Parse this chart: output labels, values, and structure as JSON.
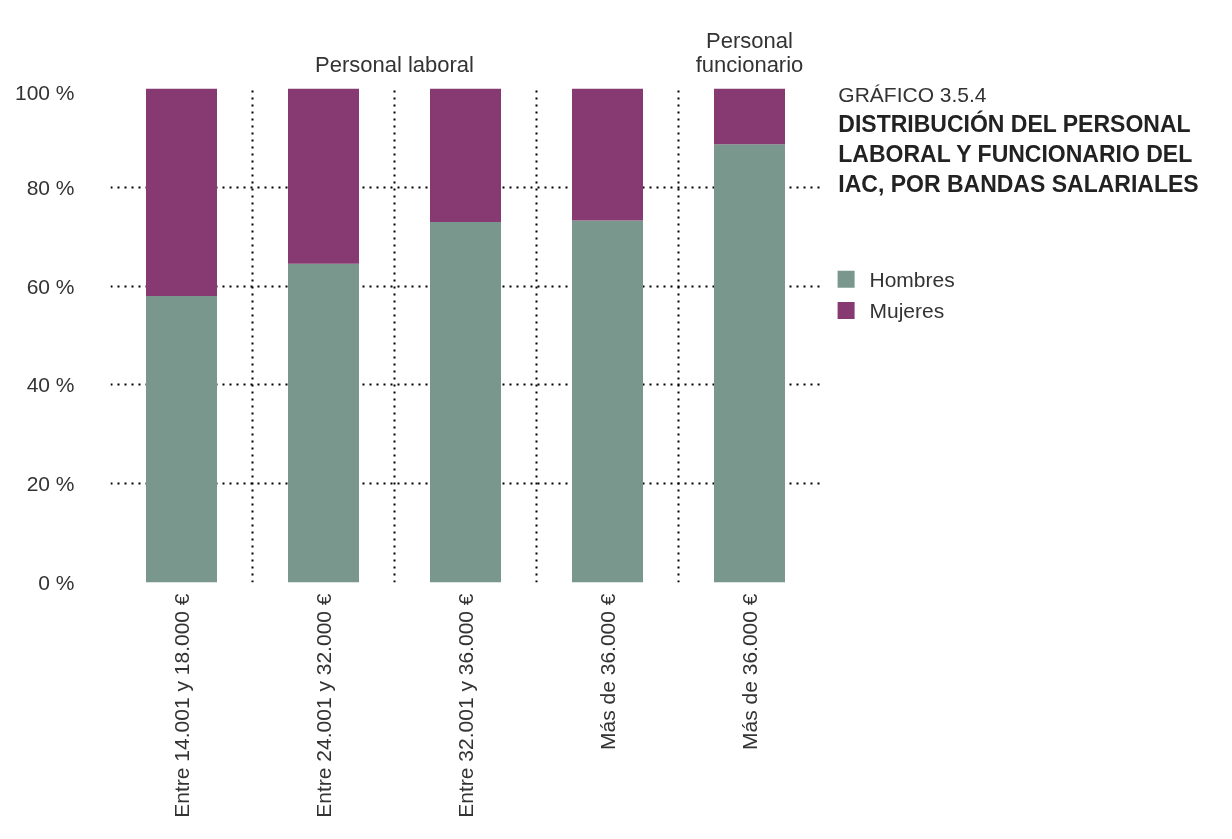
{
  "chart_data": {
    "type": "bar",
    "stacked": true,
    "title": "DISTRIBUCIÓN DEL PERSONAL LABORAL Y FUNCIONARIO DEL IAC, POR BANDAS SALARIALES",
    "subtitle": "GRÁFICO 3.5.4",
    "categories": [
      "Entre 14.001 y 18.000 €",
      "Entre 24.001 y 32.000 €",
      "Entre 32.001 y 36.000 €",
      "Más de 36.000 €",
      "Más de 36.000 €"
    ],
    "series": [
      {
        "name": "Hombres",
        "color": "#7a978d",
        "values": [
          58,
          64.5,
          73,
          73.3,
          88.7
        ]
      },
      {
        "name": "Mujeres",
        "color": "#873a72",
        "values": [
          42,
          35.5,
          27,
          26.7,
          11.3
        ]
      }
    ],
    "ylim": [
      0,
      100
    ],
    "yticks": [
      {
        "value": 0,
        "label": "0 %"
      },
      {
        "value": 20,
        "label": "20 %"
      },
      {
        "value": 40,
        "label": "40 %"
      },
      {
        "value": 60,
        "label": "60 %"
      },
      {
        "value": 80,
        "label": "80 %"
      },
      {
        "value": 100,
        "label": "100 %"
      }
    ],
    "grid": true,
    "legend": "right",
    "annotations": [
      "Personal laboral",
      "Personal funcionario"
    ]
  }
}
